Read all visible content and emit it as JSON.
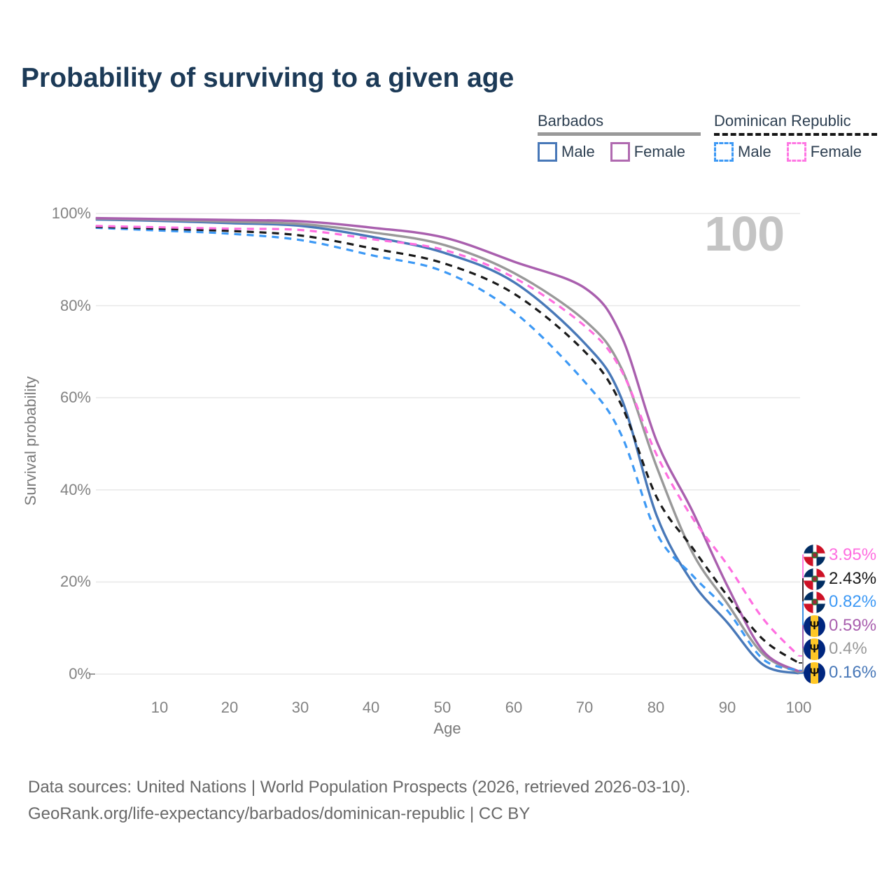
{
  "title": "Probability of surviving to a given age",
  "watermark": "100",
  "legend": {
    "groups": [
      {
        "name": "Barbados",
        "line_style": "solid",
        "line_color": "#999999",
        "items": [
          {
            "label": "Male",
            "color": "#4878b8",
            "style": "solid"
          },
          {
            "label": "Female",
            "color": "#b06ab0",
            "style": "solid"
          }
        ]
      },
      {
        "name": "Dominican Republic",
        "line_style": "dashed",
        "line_color": "#151515",
        "items": [
          {
            "label": "Male",
            "color": "#3d99f5",
            "style": "dashed"
          },
          {
            "label": "Female",
            "color": "#ff77e3",
            "style": "dashed"
          }
        ]
      }
    ]
  },
  "axes": {
    "y": {
      "title": "Survival probability",
      "ticks": [
        "100%",
        "80%",
        "60%",
        "40%",
        "20%",
        "0%"
      ],
      "tick_values": [
        100,
        80,
        60,
        40,
        20,
        0
      ]
    },
    "x": {
      "title": "Age",
      "ticks": [
        "10",
        "20",
        "30",
        "40",
        "50",
        "60",
        "70",
        "80",
        "90",
        "100"
      ],
      "tick_values": [
        10,
        20,
        30,
        40,
        50,
        60,
        70,
        80,
        90,
        100
      ]
    }
  },
  "chart_data": {
    "type": "line",
    "title": "Probability of surviving to a given age",
    "xlabel": "Age",
    "ylabel": "Survival probability",
    "xlim": [
      0,
      100
    ],
    "ylim": [
      0,
      100
    ],
    "grid": "horizontal",
    "x": [
      1,
      10,
      20,
      30,
      40,
      50,
      60,
      70,
      75,
      80,
      85,
      90,
      95,
      100
    ],
    "series": [
      {
        "name": "Dominican Republic Female",
        "country": "Dominican Republic",
        "sex": "Female",
        "color": "#ff6ee0",
        "dashed": true,
        "end_label": "3.95%",
        "values": [
          97.3,
          97.0,
          96.7,
          96.4,
          94.4,
          92.1,
          86.0,
          75.4,
          66.0,
          47.6,
          34.0,
          23.6,
          12.0,
          3.95
        ]
      },
      {
        "name": "Dominican Republic Both sexes",
        "country": "Dominican Republic",
        "sex": "Both",
        "color": "#1a1a1a",
        "dashed": true,
        "end_label": "2.43%",
        "values": [
          97.1,
          96.7,
          96.2,
          95.2,
          92.4,
          89.2,
          82.5,
          69.8,
          58.5,
          38.4,
          27.5,
          16.9,
          7.5,
          2.43
        ]
      },
      {
        "name": "Dominican Republic Male",
        "country": "Dominican Republic",
        "sex": "Male",
        "color": "#3d99f5",
        "dashed": true,
        "end_label": "0.82%",
        "values": [
          96.9,
          96.3,
          95.6,
          94.2,
          90.9,
          87.4,
          78.5,
          63.2,
          52.0,
          30.6,
          21.5,
          13.7,
          3.2,
          0.82
        ]
      },
      {
        "name": "Barbados Female",
        "country": "Barbados",
        "sex": "Female",
        "color": "#a95fae",
        "dashed": false,
        "end_label": "0.59%",
        "values": [
          99.0,
          98.8,
          98.6,
          98.3,
          96.9,
          94.8,
          89.5,
          83.7,
          73.5,
          50.6,
          35.5,
          19.0,
          5.0,
          0.59
        ]
      },
      {
        "name": "Barbados Both sexes",
        "country": "Barbados",
        "sex": "Both",
        "color": "#999999",
        "dashed": false,
        "end_label": "0.4%",
        "values": [
          98.9,
          98.6,
          98.2,
          97.7,
          95.9,
          93.2,
          87.0,
          76.6,
          66.5,
          45.0,
          26.5,
          15.2,
          4.3,
          0.4
        ]
      },
      {
        "name": "Barbados Male",
        "country": "Barbados",
        "sex": "Male",
        "color": "#4878b8",
        "dashed": false,
        "end_label": "0.16%",
        "values": [
          98.7,
          98.4,
          97.9,
          97.3,
          94.9,
          91.5,
          85.0,
          71.6,
          60.0,
          34.4,
          20.0,
          11.1,
          2.0,
          0.16
        ]
      }
    ]
  },
  "end_labels": [
    {
      "text": "3.95%",
      "color": "#ff6ee0",
      "flag": "dominican-republic"
    },
    {
      "text": "2.43%",
      "color": "#1a1a1a",
      "flag": "dominican-republic"
    },
    {
      "text": "0.82%",
      "color": "#3d99f5",
      "flag": "dominican-republic"
    },
    {
      "text": "0.59%",
      "color": "#a95fae",
      "flag": "barbados"
    },
    {
      "text": "0.4%",
      "color": "#999999",
      "flag": "barbados"
    },
    {
      "text": "0.16%",
      "color": "#4878b8",
      "flag": "barbados"
    }
  ],
  "footer": {
    "line1": "Data sources: United Nations | World Population Prospects (2026, retrieved 2026-03-10).",
    "line2": "GeoRank.org/life-expectancy/barbados/dominican-republic | CC BY"
  }
}
